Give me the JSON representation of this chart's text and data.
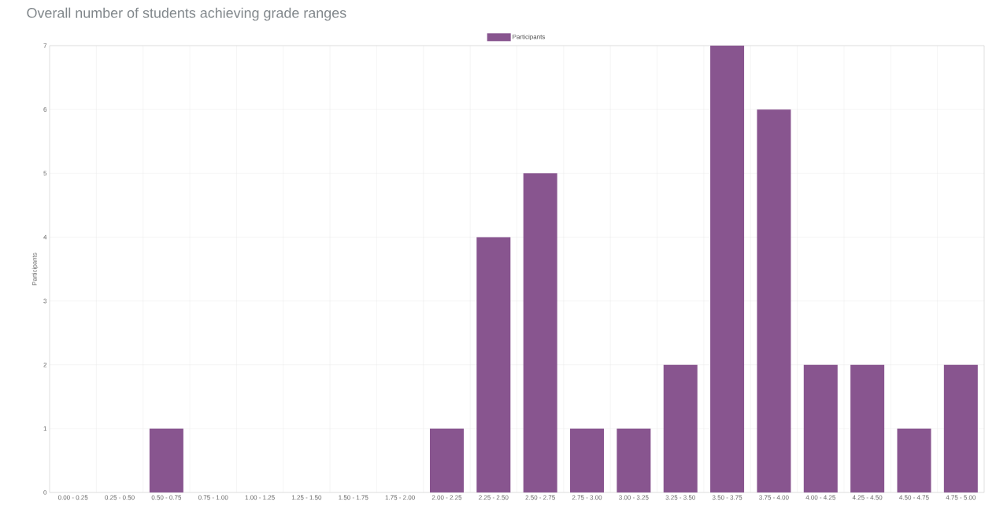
{
  "chart_data": {
    "type": "bar",
    "title": "Overall number of students achieving grade ranges",
    "ylabel": "Participants",
    "categories": [
      "0.00 - 0.25",
      "0.25 - 0.50",
      "0.50 - 0.75",
      "0.75 - 1.00",
      "1.00 - 1.25",
      "1.25 - 1.50",
      "1.50 - 1.75",
      "1.75 - 2.00",
      "2.00 - 2.25",
      "2.25 - 2.50",
      "2.50 - 2.75",
      "2.75 - 3.00",
      "3.00 - 3.25",
      "3.25 - 3.50",
      "3.50 - 3.75",
      "3.75 - 4.00",
      "4.00 - 4.25",
      "4.25 - 4.50",
      "4.50 - 4.75",
      "4.75 - 5.00"
    ],
    "series": [
      {
        "name": "Participants",
        "color": "#88558f",
        "values": [
          0,
          0,
          1,
          0,
          0,
          0,
          0,
          0,
          1,
          4,
          5,
          1,
          1,
          2,
          7,
          6,
          2,
          2,
          1,
          2
        ]
      }
    ],
    "ylim": [
      0,
      7
    ],
    "yticks": [
      0,
      1,
      2,
      3,
      4,
      5,
      6,
      7
    ],
    "grid": true,
    "legend": "top"
  }
}
